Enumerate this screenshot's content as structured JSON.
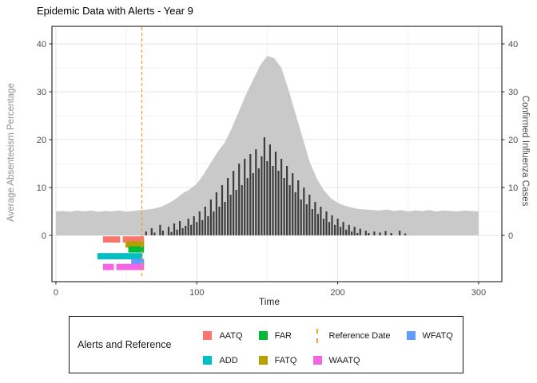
{
  "colors": {
    "background": "#FFFFFF",
    "grid_major": "#E4E4E4",
    "grid_minor": "#F1F1F1",
    "panel_border": "#2F2F2F",
    "tick": "#2F2F2F",
    "tick_label": "#4D4D4D",
    "area_fill": "#C9C9C9",
    "bar_fill": "#3E3E3E",
    "reference_orange": "#E8A33C"
  },
  "legend": {
    "title": "Alerts and Reference",
    "entries": [
      {
        "label": "AATQ",
        "type": "square",
        "color": "#F8766D"
      },
      {
        "label": "ADD",
        "type": "square",
        "color": "#00BFC4"
      },
      {
        "label": "FAR",
        "type": "square",
        "color": "#00BA38"
      },
      {
        "label": "FATQ",
        "type": "square",
        "color": "#B79F00"
      },
      {
        "label": "Reference Date",
        "type": "dashed-line",
        "color": "#E8A33C"
      },
      {
        "label": "WAATQ",
        "type": "square",
        "color": "#F564E3"
      },
      {
        "label": "WFATQ",
        "type": "square",
        "color": "#619CFF"
      }
    ]
  },
  "chart_data": {
    "type": "bar",
    "title": "Epidemic Data with Alerts - Year 9",
    "xlabel": "Time",
    "ylabel_left": "Average Absenteeism Percentage",
    "ylabel_right": "Confirmed Influenza Cases",
    "xlim": [
      -2.8,
      316.5
    ],
    "ylim": [
      -9.67,
      43.67
    ],
    "x_ticks": [
      0,
      100,
      200,
      300
    ],
    "x_minor_ticks": [
      50,
      150,
      250
    ],
    "y_ticks": [
      0,
      10,
      20,
      30,
      40
    ],
    "y_minor_ticks": [
      5,
      15,
      25,
      35
    ],
    "grid": true,
    "legend_position": "bottom",
    "reference_date": {
      "x": 61,
      "label": "Reference Date",
      "style": "dashed",
      "color": "#E8A33C"
    },
    "series": [
      {
        "name": "Average Absenteeism Percentage",
        "render": "area",
        "color": "#C9C9C9",
        "axis": "left",
        "x_start": 0,
        "x_step": 5,
        "values": [
          5,
          5.1,
          4.9,
          5.2,
          5,
          5.2,
          4.9,
          5.1,
          5,
          5.2,
          4.9,
          5.1,
          5.3,
          5.4,
          5.6,
          6,
          6.7,
          7.6,
          8.8,
          9.6,
          10.8,
          12.8,
          15.2,
          17.5,
          19.5,
          22.5,
          26,
          29.5,
          32.5,
          35.5,
          37.5,
          37,
          35,
          30.5,
          25.5,
          20.5,
          15.5,
          12,
          9.5,
          7.8,
          6.8,
          6.2,
          5.8,
          5.5,
          5.4,
          5.3,
          5.2,
          5.4,
          5.1,
          5.3,
          5,
          5.2,
          5.1,
          5.3,
          5,
          5.2,
          5.1,
          5,
          5.2,
          5.1,
          5
        ]
      },
      {
        "name": "Confirmed Influenza Cases",
        "render": "bar",
        "color": "#3E3E3E",
        "axis": "right",
        "x_start": 0,
        "x_step": 2,
        "values": [
          0,
          0,
          0,
          0,
          0,
          0,
          0,
          0,
          0,
          0,
          0,
          0,
          0,
          0,
          0,
          0,
          0,
          0,
          0,
          0,
          0,
          0,
          0,
          0,
          0,
          0,
          0,
          0,
          0,
          0,
          0,
          0,
          0.8,
          0,
          1.5,
          0.6,
          0,
          2.2,
          1,
          0,
          1.8,
          0.7,
          2.5,
          1.2,
          3,
          1.5,
          2,
          3.5,
          2.2,
          4,
          2.8,
          5,
          3.2,
          6,
          4,
          7.5,
          5,
          9,
          6,
          10.5,
          7,
          12,
          8.5,
          13.5,
          9.5,
          15,
          10.5,
          16,
          12,
          17,
          13,
          18,
          14,
          16.5,
          20.5,
          15.5,
          19,
          14.5,
          17.5,
          13.5,
          16,
          12,
          14.5,
          10.5,
          13,
          9,
          11.5,
          7.5,
          10,
          6.5,
          8.5,
          5.5,
          7,
          4.5,
          6,
          3.5,
          5,
          2.8,
          4.2,
          2.2,
          3.5,
          1.8,
          2.8,
          1.2,
          2.2,
          0.8,
          1.8,
          0.5,
          1.4,
          0,
          1,
          0.5,
          0,
          0.8,
          0,
          0.6,
          0,
          0.9,
          0,
          0.5,
          0,
          0,
          1,
          0,
          0.4,
          0,
          0,
          0,
          0,
          0,
          0,
          0,
          0,
          0,
          0,
          0,
          0,
          0,
          0,
          0,
          0,
          0,
          0,
          0,
          0,
          0,
          0,
          0,
          0,
          0,
          0
        ]
      }
    ],
    "alerts": [
      {
        "name": "AATQ",
        "color": "#F8766D",
        "row_y": -0.85,
        "segments": [
          [
            34,
            45
          ],
          [
            48,
            53
          ],
          [
            54,
            62
          ]
        ]
      },
      {
        "name": "FATQ",
        "color": "#B79F00",
        "row_y": -1.9,
        "segments": [
          [
            50,
            62
          ]
        ]
      },
      {
        "name": "FAR",
        "color": "#00BA38",
        "row_y": -2.95,
        "segments": [
          [
            52,
            62
          ]
        ]
      },
      {
        "name": "ADD",
        "color": "#00BFC4",
        "row_y": -4.35,
        "segments": [
          [
            30,
            61
          ]
        ]
      },
      {
        "name": "WFATQ",
        "color": "#619CFF",
        "row_y": -5.55,
        "segments": [
          [
            54,
            62
          ]
        ]
      },
      {
        "name": "WAATQ",
        "color": "#F564E3",
        "row_y": -6.6,
        "segments": [
          [
            34,
            40.5
          ],
          [
            43.5,
            49
          ],
          [
            50,
            62
          ]
        ]
      }
    ]
  }
}
